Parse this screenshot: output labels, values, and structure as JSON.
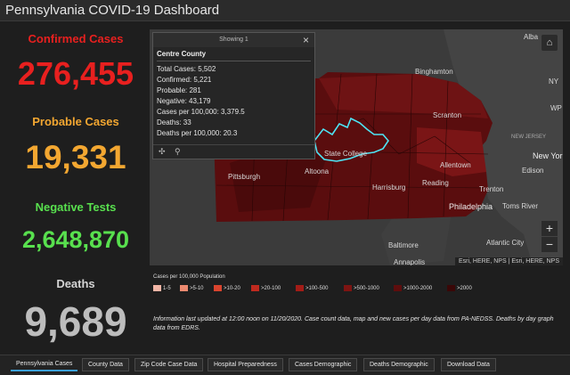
{
  "header": {
    "title": "Pennsylvania COVID-19 Dashboard"
  },
  "stats": {
    "confirmed": {
      "label": "Confirmed Cases",
      "value": "276,455",
      "color": "#e8201f"
    },
    "probable": {
      "label": "Probable Cases",
      "value": "19,331",
      "color": "#f3a731"
    },
    "negative": {
      "label": "Negative Tests",
      "value": "2,648,870",
      "color": "#58e04e"
    },
    "deaths": {
      "label": "Deaths",
      "value": "9,689",
      "color": "#bdbdbd"
    }
  },
  "popup": {
    "showing": "Showing 1",
    "county": "Centre County",
    "rows": [
      "Total Cases: 5,502",
      "Confirmed: 5,221",
      "Probable: 281",
      "Negative: 43,179",
      "Cases per 100,000: 3,379.5",
      "Deaths: 33",
      "Deaths per 100,000: 20.3"
    ]
  },
  "map": {
    "cities": {
      "albany": "Alba",
      "binghamton": "Binghamton",
      "scranton": "Scranton",
      "new_york": "New York",
      "new_jersey": "NEW JERSEY",
      "edison": "Edison",
      "allentown": "Allentown",
      "state_college": "State College",
      "altoona": "Altoona",
      "pittsburgh": "Pittsburgh",
      "harrisburg": "Harrisburg",
      "reading": "Reading",
      "trenton": "Trenton",
      "philadelphia": "Philadelphia",
      "toms_river": "Toms River",
      "baltimore": "Baltimore",
      "atlantic_city": "Atlantic City",
      "annapolis": "Annapolis",
      "ny": "NY",
      "wp": "WP"
    },
    "attribution": "Esri, HERE, NPS | Esri, HERE, NPS"
  },
  "legend": {
    "title": "Cases per 100,000 Population",
    "items": [
      {
        "label": "1-5",
        "color": "#f2b6a6"
      },
      {
        "label": ">5-10",
        "color": "#ec8a70"
      },
      {
        "label": ">10-20",
        "color": "#d9442e"
      },
      {
        "label": ">20-100",
        "color": "#c02a1f"
      },
      {
        "label": ">100-500",
        "color": "#a31c17"
      },
      {
        "label": ">500-1000",
        "color": "#7e1412"
      },
      {
        "label": ">1000-2000",
        "color": "#5e0d0d"
      },
      {
        "label": ">2000",
        "color": "#3a0707"
      }
    ]
  },
  "info": "Information last updated at 12:00 noon on 11/20/2020. Case count data, map and new cases per day data from PA-NEDSS. Deaths by day graph data from EDRS.",
  "tabs": [
    "Pennsylvania Cases",
    "County Data",
    "Zip Code Case Data",
    "Hospital Preparedness",
    "Cases Demographic",
    "Deaths Demographic",
    "Download Data"
  ]
}
